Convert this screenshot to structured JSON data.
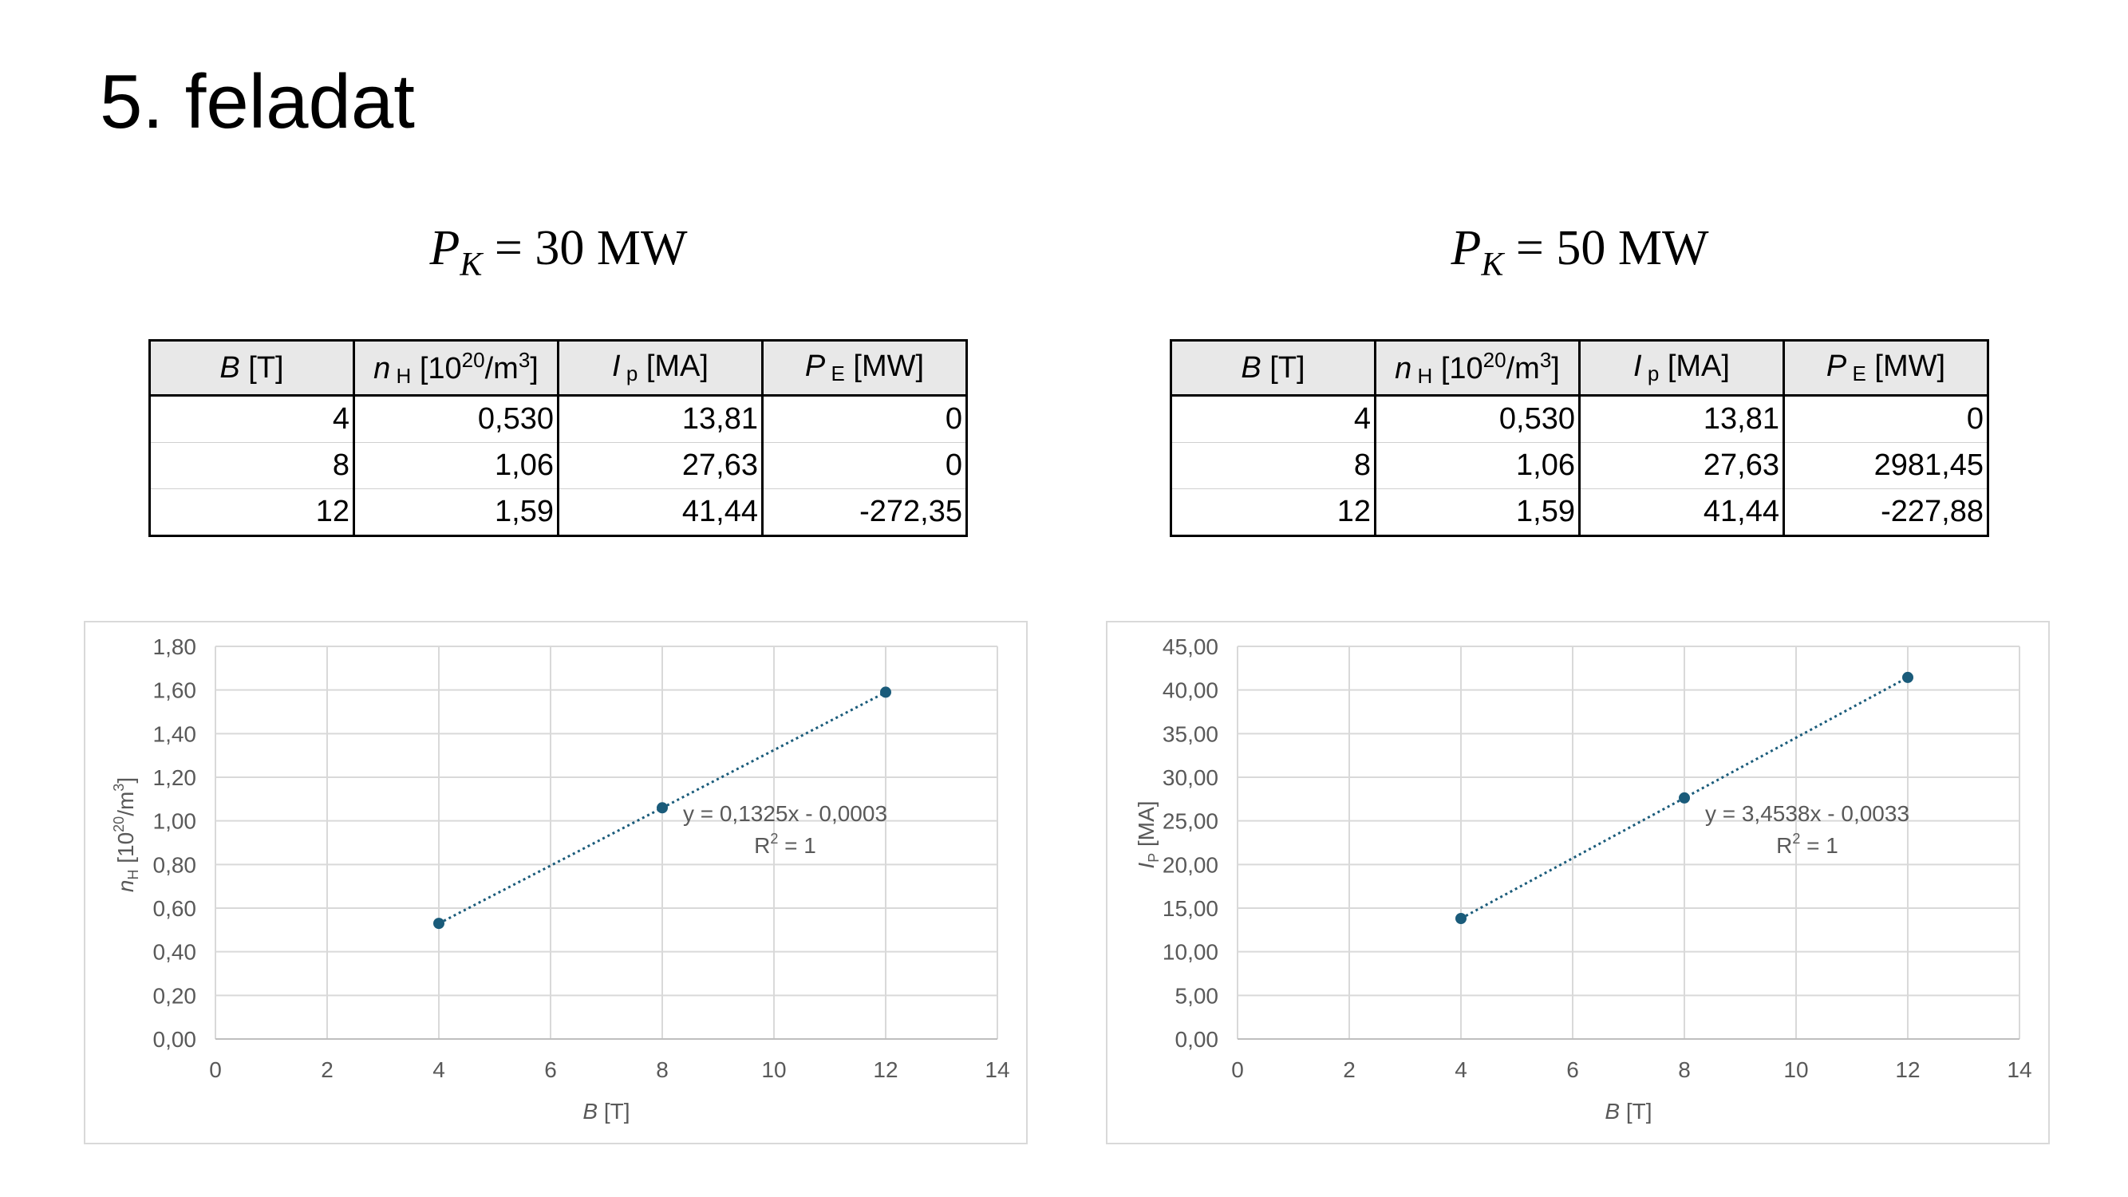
{
  "title": "5. feladat",
  "sections": [
    {
      "formula": {
        "symbol": "P",
        "subscript": "K",
        "equals": "= 30 MW"
      },
      "table": {
        "headers": [
          {
            "main": "B",
            "sub": "",
            "sup": "",
            "unit": " [T]"
          },
          {
            "main": "n",
            "sub": " H",
            "pre": " [10",
            "sup": "20",
            "unit": "/m",
            "sup2": "3",
            "post": "]"
          },
          {
            "main": "I",
            "sub": " p",
            "unit": " [MA]"
          },
          {
            "main": "P",
            "sub": " E",
            "unit": " [MW]"
          }
        ],
        "rows": [
          [
            "4",
            "0,530",
            "13,81",
            "0"
          ],
          [
            "8",
            "1,06",
            "27,63",
            "0"
          ],
          [
            "12",
            "1,59",
            "41,44",
            "-272,35"
          ]
        ]
      }
    },
    {
      "formula": {
        "symbol": "P",
        "subscript": "K",
        "equals": "= 50 MW"
      },
      "table": {
        "headers": [
          {
            "main": "B",
            "sub": "",
            "sup": "",
            "unit": " [T]"
          },
          {
            "main": "n",
            "sub": " H",
            "pre": " [10",
            "sup": "20",
            "unit": "/m",
            "sup2": "3",
            "post": "]"
          },
          {
            "main": "I",
            "sub": " p",
            "unit": " [MA]"
          },
          {
            "main": "P",
            "sub": " E",
            "unit": " [MW]"
          }
        ],
        "rows": [
          [
            "4",
            "0,530",
            "13,81",
            "0"
          ],
          [
            "8",
            "1,06",
            "27,63",
            "2981,45"
          ],
          [
            "12",
            "1,59",
            "41,44",
            "-227,88"
          ]
        ]
      }
    }
  ],
  "chart_data": [
    {
      "type": "scatter",
      "x": [
        4,
        8,
        12
      ],
      "y": [
        0.53,
        1.06,
        1.59
      ],
      "xlim": [
        0,
        14
      ],
      "ylim": [
        0,
        1.8
      ],
      "xticks": [
        "0",
        "2",
        "4",
        "6",
        "8",
        "10",
        "12",
        "14"
      ],
      "yticks": [
        "0,00",
        "0,20",
        "0,40",
        "0,60",
        "0,80",
        "1,00",
        "1,20",
        "1,40",
        "1,60",
        "1,80"
      ],
      "xlabel": {
        "main": "B",
        "rest": " [T]"
      },
      "ylabel": {
        "main": "n",
        "sub": "H",
        "rest": " [10",
        "sup": "20",
        "rest2": "/m",
        "sup2": "3",
        "rest3": "]"
      },
      "trendline": {
        "slope": 0.1325,
        "intercept": -0.0003,
        "equation": "y = 0,1325x - 0,0003",
        "r2_label": "R",
        "r2_sup": "2",
        "r2_value": " = 1"
      },
      "grid": true,
      "color": "#1a5b7a"
    },
    {
      "type": "scatter",
      "x": [
        4,
        8,
        12
      ],
      "y": [
        13.81,
        27.63,
        41.44
      ],
      "xlim": [
        0,
        14
      ],
      "ylim": [
        0,
        45
      ],
      "xticks": [
        "0",
        "2",
        "4",
        "6",
        "8",
        "10",
        "12",
        "14"
      ],
      "yticks": [
        "0,00",
        "5,00",
        "10,00",
        "15,00",
        "20,00",
        "25,00",
        "30,00",
        "35,00",
        "40,00",
        "45,00"
      ],
      "xlabel": {
        "main": "B",
        "rest": " [T]"
      },
      "ylabel": {
        "main": "I",
        "sub": "P",
        "rest": " [MA]"
      },
      "trendline": {
        "slope": 3.4538,
        "intercept": -0.0033,
        "equation": "y = 3,4538x - 0,0033",
        "r2_label": "R",
        "r2_sup": "2",
        "r2_value": " = 1"
      },
      "grid": true,
      "color": "#1a5b7a"
    }
  ]
}
